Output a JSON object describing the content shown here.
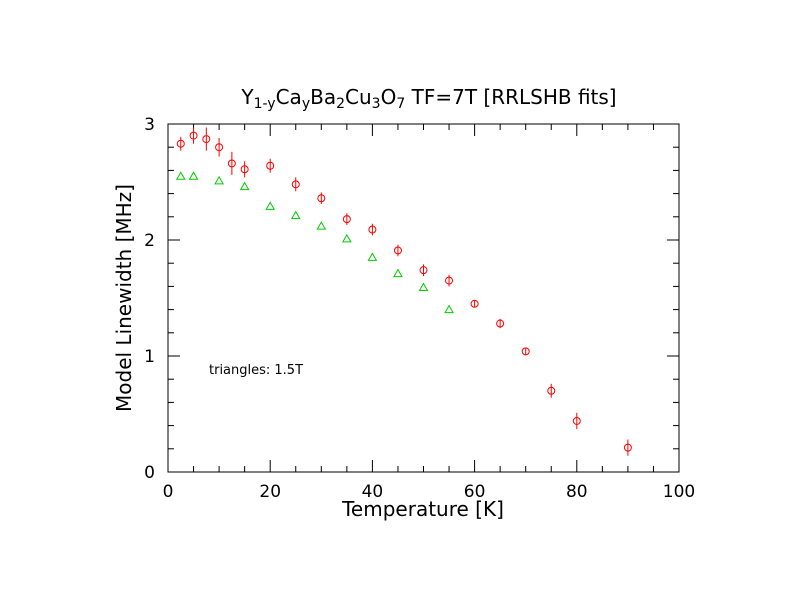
{
  "chart_data": {
    "type": "scatter",
    "title_parts": [
      {
        "text": "Y",
        "pos": "base"
      },
      {
        "text": "1-y",
        "pos": "sub"
      },
      {
        "text": "Ca",
        "pos": "base"
      },
      {
        "text": "y",
        "pos": "sub"
      },
      {
        "text": "Ba",
        "pos": "base"
      },
      {
        "text": "2",
        "pos": "sub"
      },
      {
        "text": "Cu",
        "pos": "base"
      },
      {
        "text": "3",
        "pos": "sub"
      },
      {
        "text": "O",
        "pos": "base"
      },
      {
        "text": "7",
        "pos": "sub"
      },
      {
        "text": " TF=7T [RRLSHB fits]",
        "pos": "base"
      }
    ],
    "xlabel": "Temperature [K]",
    "ylabel": "Model Linewidth [MHz]",
    "xlim": [
      0,
      100
    ],
    "ylim": [
      0,
      3.0
    ],
    "x_ticks": [
      0,
      20,
      40,
      60,
      80,
      100
    ],
    "y_ticks": [
      0,
      1,
      2,
      3
    ],
    "x_minor_step": 5,
    "y_minor_step": 0.2,
    "annotation": "triangles: 1.5T",
    "series": [
      {
        "name": "TF=7T",
        "marker": "circle",
        "color": "#ff0000",
        "points": [
          {
            "x": 2.5,
            "y": 2.83,
            "err": 0.06
          },
          {
            "x": 5,
            "y": 2.9,
            "err": 0.07
          },
          {
            "x": 7.5,
            "y": 2.87,
            "err": 0.1
          },
          {
            "x": 10,
            "y": 2.8,
            "err": 0.08
          },
          {
            "x": 12.5,
            "y": 2.66,
            "err": 0.1
          },
          {
            "x": 15,
            "y": 2.61,
            "err": 0.07
          },
          {
            "x": 20,
            "y": 2.64,
            "err": 0.06
          },
          {
            "x": 25,
            "y": 2.48,
            "err": 0.06
          },
          {
            "x": 30,
            "y": 2.36,
            "err": 0.05
          },
          {
            "x": 35,
            "y": 2.18,
            "err": 0.05
          },
          {
            "x": 40,
            "y": 2.09,
            "err": 0.05
          },
          {
            "x": 45,
            "y": 1.91,
            "err": 0.05
          },
          {
            "x": 50,
            "y": 1.74,
            "err": 0.05
          },
          {
            "x": 55,
            "y": 1.65,
            "err": 0.05
          },
          {
            "x": 60,
            "y": 1.45,
            "err": 0.03
          },
          {
            "x": 65,
            "y": 1.28,
            "err": 0.04
          },
          {
            "x": 70,
            "y": 1.04,
            "err": 0.03
          },
          {
            "x": 75,
            "y": 0.7,
            "err": 0.06
          },
          {
            "x": 80,
            "y": 0.44,
            "err": 0.07
          },
          {
            "x": 90,
            "y": 0.21,
            "err": 0.07
          }
        ]
      },
      {
        "name": "1.5T",
        "marker": "triangle",
        "color": "#00cc00",
        "points": [
          {
            "x": 2.5,
            "y": 2.55
          },
          {
            "x": 5,
            "y": 2.55
          },
          {
            "x": 10,
            "y": 2.51
          },
          {
            "x": 15,
            "y": 2.46
          },
          {
            "x": 20,
            "y": 2.29
          },
          {
            "x": 25,
            "y": 2.21
          },
          {
            "x": 30,
            "y": 2.12
          },
          {
            "x": 35,
            "y": 2.01
          },
          {
            "x": 40,
            "y": 1.85
          },
          {
            "x": 45,
            "y": 1.71
          },
          {
            "x": 50,
            "y": 1.59
          },
          {
            "x": 55,
            "y": 1.4
          }
        ]
      }
    ]
  }
}
